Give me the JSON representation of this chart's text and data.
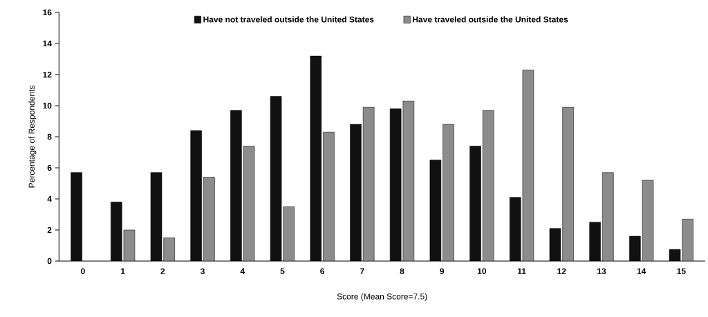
{
  "chart_data": {
    "type": "bar",
    "xlabel": "Score (Mean Score=7.5)",
    "ylabel": "Percentage of Respondents",
    "categories": [
      "0",
      "1",
      "2",
      "3",
      "4",
      "5",
      "6",
      "7",
      "8",
      "9",
      "10",
      "11",
      "12",
      "13",
      "14",
      "15"
    ],
    "series": [
      {
        "name": "Have not traveled outside the United States",
        "color": "#111111",
        "values": [
          5.7,
          3.8,
          5.7,
          8.4,
          9.7,
          10.6,
          13.2,
          8.8,
          9.8,
          6.5,
          7.4,
          4.1,
          2.1,
          2.5,
          1.6,
          0.75
        ]
      },
      {
        "name": "Have traveled outside the United States",
        "color": "#8c8c8c",
        "values": [
          null,
          2.0,
          1.5,
          5.4,
          7.4,
          3.5,
          8.3,
          9.9,
          10.3,
          8.8,
          9.7,
          12.3,
          9.9,
          5.7,
          5.2,
          2.7
        ]
      }
    ],
    "ylim": [
      0,
      16
    ],
    "yticks": [
      0,
      2,
      4,
      6,
      8,
      10,
      12,
      14,
      16
    ],
    "grid": false,
    "legend": "top"
  }
}
